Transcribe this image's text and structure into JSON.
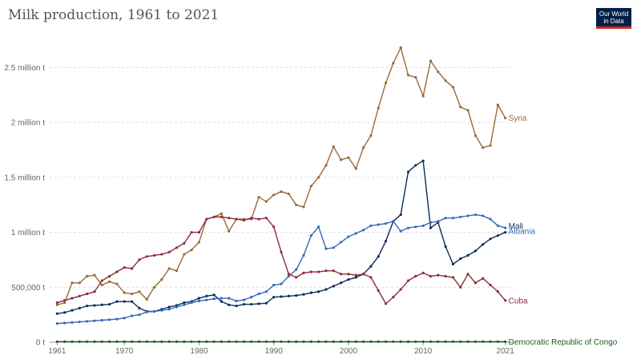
{
  "header": {
    "title": "Milk production, 1961 to 2021",
    "logo_line1": "Our World",
    "logo_line2": "in Data"
  },
  "chart_data": {
    "type": "line",
    "title": "Milk production, 1961 to 2021",
    "xlabel": "",
    "ylabel": "",
    "xlim": [
      1960,
      2022
    ],
    "ylim": [
      0,
      2750000
    ],
    "x_ticks": [
      1961,
      1970,
      1980,
      1990,
      2000,
      2010,
      2021
    ],
    "y_ticks": [
      {
        "value": 0,
        "label": "0 t"
      },
      {
        "value": 500000,
        "label": "500,000 t"
      },
      {
        "value": 1000000,
        "label": "1 million t"
      },
      {
        "value": 1500000,
        "label": "1.5 million t"
      },
      {
        "value": 2000000,
        "label": "2 million t"
      },
      {
        "value": 2500000,
        "label": "2.5 million t"
      }
    ],
    "grid": "horizontal dashed",
    "x": [
      1961,
      1962,
      1963,
      1964,
      1965,
      1966,
      1967,
      1968,
      1969,
      1970,
      1971,
      1972,
      1973,
      1974,
      1975,
      1976,
      1977,
      1978,
      1979,
      1980,
      1981,
      1982,
      1983,
      1984,
      1985,
      1986,
      1987,
      1988,
      1989,
      1990,
      1991,
      1992,
      1993,
      1994,
      1995,
      1996,
      1997,
      1998,
      1999,
      2000,
      2001,
      2002,
      2003,
      2004,
      2005,
      2006,
      2007,
      2008,
      2009,
      2010,
      2011,
      2012,
      2013,
      2014,
      2015,
      2016,
      2017,
      2018,
      2019,
      2020,
      2021
    ],
    "series": [
      {
        "name": "Syria",
        "color": "#9a6a37",
        "values": [
          340000,
          360000,
          540000,
          540000,
          600000,
          610000,
          520000,
          550000,
          530000,
          450000,
          440000,
          460000,
          390000,
          500000,
          570000,
          670000,
          650000,
          800000,
          840000,
          910000,
          1120000,
          1140000,
          1170000,
          1010000,
          1120000,
          1120000,
          1120000,
          1320000,
          1280000,
          1340000,
          1370000,
          1350000,
          1250000,
          1230000,
          1420000,
          1500000,
          1610000,
          1780000,
          1660000,
          1680000,
          1580000,
          1770000,
          1880000,
          2130000,
          2360000,
          2540000,
          2680000,
          2430000,
          2410000,
          2240000,
          2560000,
          2460000,
          2380000,
          2320000,
          2140000,
          2110000,
          1880000,
          1770000,
          1790000,
          2160000,
          2040000
        ]
      },
      {
        "name": "Mali",
        "color": "#0b2c5e",
        "values": [
          260000,
          270000,
          290000,
          310000,
          330000,
          335000,
          340000,
          345000,
          370000,
          370000,
          370000,
          310000,
          280000,
          280000,
          300000,
          320000,
          335000,
          360000,
          370000,
          400000,
          420000,
          430000,
          370000,
          340000,
          330000,
          345000,
          345000,
          350000,
          355000,
          410000,
          415000,
          420000,
          425000,
          435000,
          450000,
          460000,
          480000,
          510000,
          540000,
          570000,
          590000,
          620000,
          690000,
          780000,
          920000,
          1100000,
          1160000,
          1550000,
          1610000,
          1650000,
          1040000,
          1090000,
          870000,
          710000,
          760000,
          790000,
          830000,
          890000,
          940000,
          970000,
          1000000
        ]
      },
      {
        "name": "Albania",
        "color": "#3669b8",
        "values": [
          170000,
          175000,
          180000,
          185000,
          190000,
          195000,
          200000,
          205000,
          210000,
          220000,
          240000,
          250000,
          275000,
          280000,
          290000,
          300000,
          320000,
          340000,
          360000,
          375000,
          385000,
          395000,
          400000,
          400000,
          375000,
          385000,
          410000,
          440000,
          460000,
          520000,
          530000,
          600000,
          660000,
          790000,
          970000,
          1050000,
          850000,
          860000,
          910000,
          960000,
          990000,
          1020000,
          1060000,
          1070000,
          1080000,
          1100000,
          1010000,
          1040000,
          1050000,
          1060000,
          1090000,
          1100000,
          1130000,
          1130000,
          1140000,
          1150000,
          1160000,
          1150000,
          1120000,
          1060000,
          1040000
        ]
      },
      {
        "name": "Cuba",
        "color": "#8d2d38",
        "values": [
          360000,
          380000,
          400000,
          420000,
          440000,
          460000,
          560000,
          600000,
          640000,
          680000,
          670000,
          750000,
          780000,
          790000,
          800000,
          820000,
          860000,
          900000,
          1000000,
          1000000,
          1120000,
          1140000,
          1140000,
          1130000,
          1120000,
          1110000,
          1130000,
          1120000,
          1130000,
          1050000,
          820000,
          620000,
          590000,
          630000,
          640000,
          640000,
          650000,
          650000,
          620000,
          620000,
          610000,
          620000,
          590000,
          470000,
          350000,
          410000,
          480000,
          560000,
          600000,
          630000,
          600000,
          610000,
          600000,
          590000,
          500000,
          620000,
          540000,
          580000,
          520000,
          460000,
          380000
        ]
      },
      {
        "name": "Democratic Republic of Congo",
        "color": "#1f5a1f",
        "values": [
          5000,
          5000,
          5000,
          5000,
          5000,
          5000,
          5000,
          5000,
          5000,
          5000,
          5000,
          5000,
          5000,
          5000,
          5000,
          5000,
          5000,
          5000,
          5000,
          5000,
          5000,
          5000,
          5000,
          5000,
          5000,
          5000,
          5000,
          5000,
          5000,
          5000,
          5000,
          5000,
          5000,
          5000,
          5000,
          5000,
          5000,
          5000,
          5000,
          5000,
          5000,
          5000,
          5000,
          5000,
          5000,
          5000,
          5000,
          5000,
          5000,
          5000,
          5000,
          5000,
          5000,
          5000,
          5000,
          5000,
          5000,
          5000,
          5000,
          5000,
          5000
        ]
      }
    ]
  }
}
